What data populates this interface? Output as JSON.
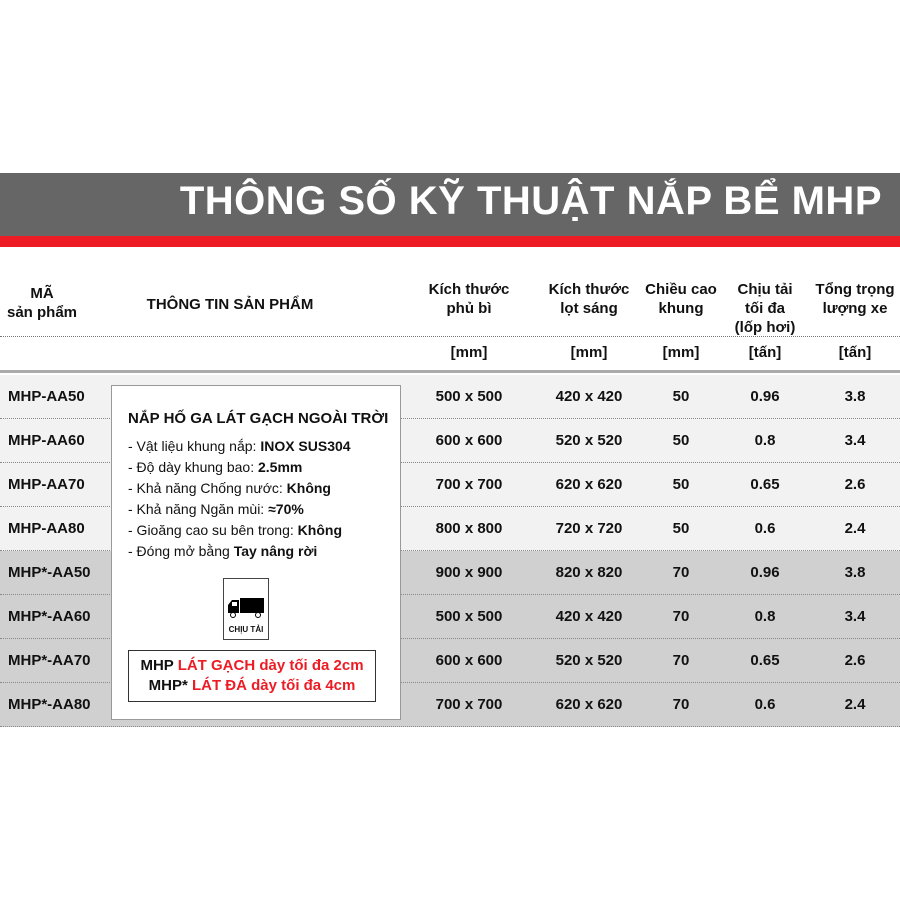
{
  "title": "THÔNG SỐ KỸ THUẬT NẮP BỂ MHP",
  "headers": {
    "code": [
      "MÃ",
      "sản phẩm"
    ],
    "info": "THÔNG TIN SẢN PHẨM",
    "outer": [
      "Kích thước",
      "phủ bì"
    ],
    "clear": [
      "Kích thước",
      "lọt sáng"
    ],
    "height": [
      "Chiều cao",
      "khung"
    ],
    "load": [
      "Chịu tải",
      "tối đa",
      "(lốp hơi)"
    ],
    "vehicle": [
      "Tổng trọng",
      "lượng xe"
    ]
  },
  "units": [
    "[mm]",
    "[mm]",
    "[mm]",
    "[tấn]",
    "[tấn]"
  ],
  "rows": [
    {
      "code": "MHP-AA50",
      "outer": "500 x 500",
      "clear": "420 x 420",
      "height": "50",
      "load": "0.96",
      "vehicle": "3.8"
    },
    {
      "code": "MHP-AA60",
      "outer": "600 x 600",
      "clear": "520 x 520",
      "height": "50",
      "load": "0.8",
      "vehicle": "3.4"
    },
    {
      "code": "MHP-AA70",
      "outer": "700 x 700",
      "clear": "620 x 620",
      "height": "50",
      "load": "0.65",
      "vehicle": "2.6"
    },
    {
      "code": "MHP-AA80",
      "outer": "800 x 800",
      "clear": "720 x 720",
      "height": "50",
      "load": "0.6",
      "vehicle": "2.4"
    },
    {
      "code": "MHP*-AA50",
      "outer": "900 x 900",
      "clear": "820 x 820",
      "height": "70",
      "load": "0.96",
      "vehicle": "3.8"
    },
    {
      "code": "MHP*-AA60",
      "outer": "500 x 500",
      "clear": "420 x 420",
      "height": "70",
      "load": "0.8",
      "vehicle": "3.4"
    },
    {
      "code": "MHP*-AA70",
      "outer": "600 x 600",
      "clear": "520 x 520",
      "height": "70",
      "load": "0.65",
      "vehicle": "2.6"
    },
    {
      "code": "MHP*-AA80",
      "outer": "700 x 700",
      "clear": "620 x 620",
      "height": "70",
      "load": "0.6",
      "vehicle": "2.4"
    }
  ],
  "info": {
    "title": "NẮP HỐ GA LÁT GẠCH NGOÀI TRỜI",
    "features": [
      {
        "label": "- Vật liệu khung nắp: ",
        "value": "INOX SUS304"
      },
      {
        "label": "- Độ dày khung bao: ",
        "value": "2.5mm"
      },
      {
        "label": "- Khả năng Chống nước: ",
        "value": "Không"
      },
      {
        "label": "- Khả năng Ngăn mùi: ",
        "value": "≈70%"
      },
      {
        "label": "- Gioăng cao su bên trong: ",
        "value": "Không"
      },
      {
        "label": "- Đóng mở bằng ",
        "value": "Tay nâng rời"
      }
    ],
    "badge_icon": "truck-icon",
    "badge_label": "CHỊU TẢI",
    "note": [
      {
        "prefix": "MHP ",
        "highlight": "LÁT GẠCH dày tối đa 2cm"
      },
      {
        "prefix": "MHP* ",
        "highlight": "LÁT ĐÁ dày tối đa 4cm"
      }
    ]
  },
  "colors": {
    "band": "#666666",
    "accent": "#ed1c24",
    "row_light": "#f2f2f2",
    "row_dark": "#d0d0d0"
  }
}
